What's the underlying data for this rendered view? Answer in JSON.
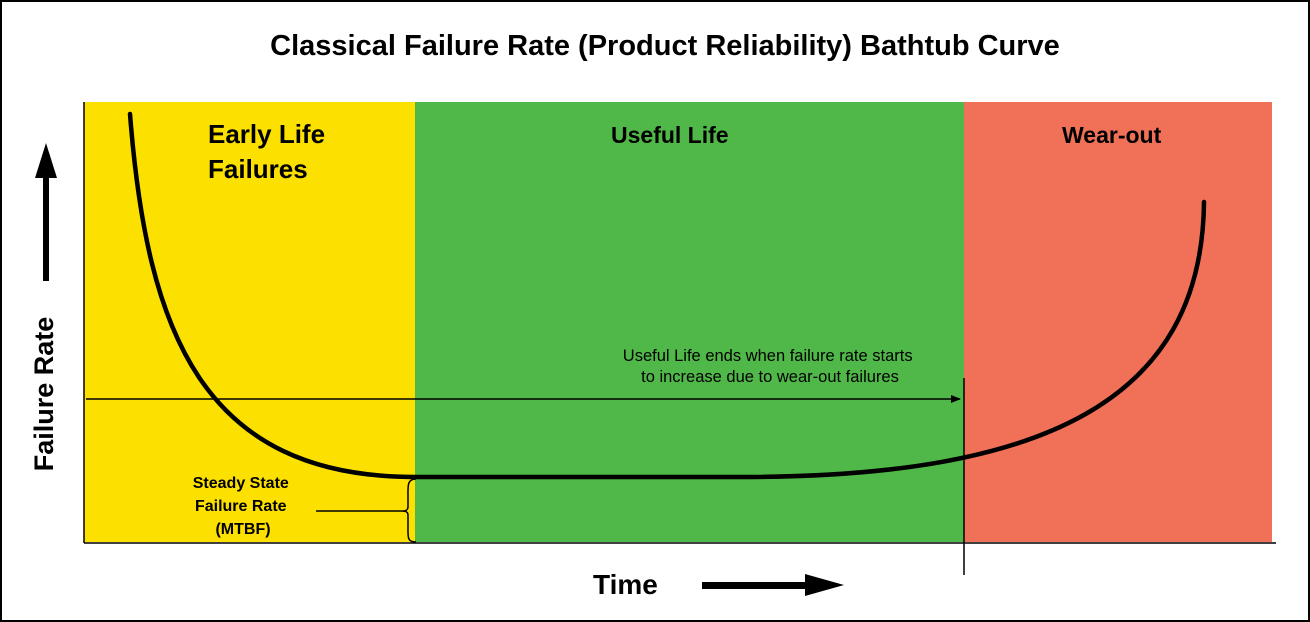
{
  "title": "Classical Failure Rate (Product Reliability) Bathtub Curve",
  "zones": [
    {
      "lines": [
        "Early Life",
        "Failures"
      ],
      "color": "#fce000"
    },
    {
      "lines": [
        "Useful Life"
      ],
      "color": "#50b848"
    },
    {
      "lines": [
        "Wear-out"
      ],
      "color": "#f07058"
    }
  ],
  "annotations": {
    "useful_life_end": [
      "Useful Life ends when failure rate starts",
      "to increase due to wear-out failures"
    ],
    "steady_state": [
      "Steady State",
      "Failure Rate",
      "(MTBF)"
    ]
  },
  "axes": {
    "y_label": "Failure Rate",
    "x_label": "Time"
  }
}
